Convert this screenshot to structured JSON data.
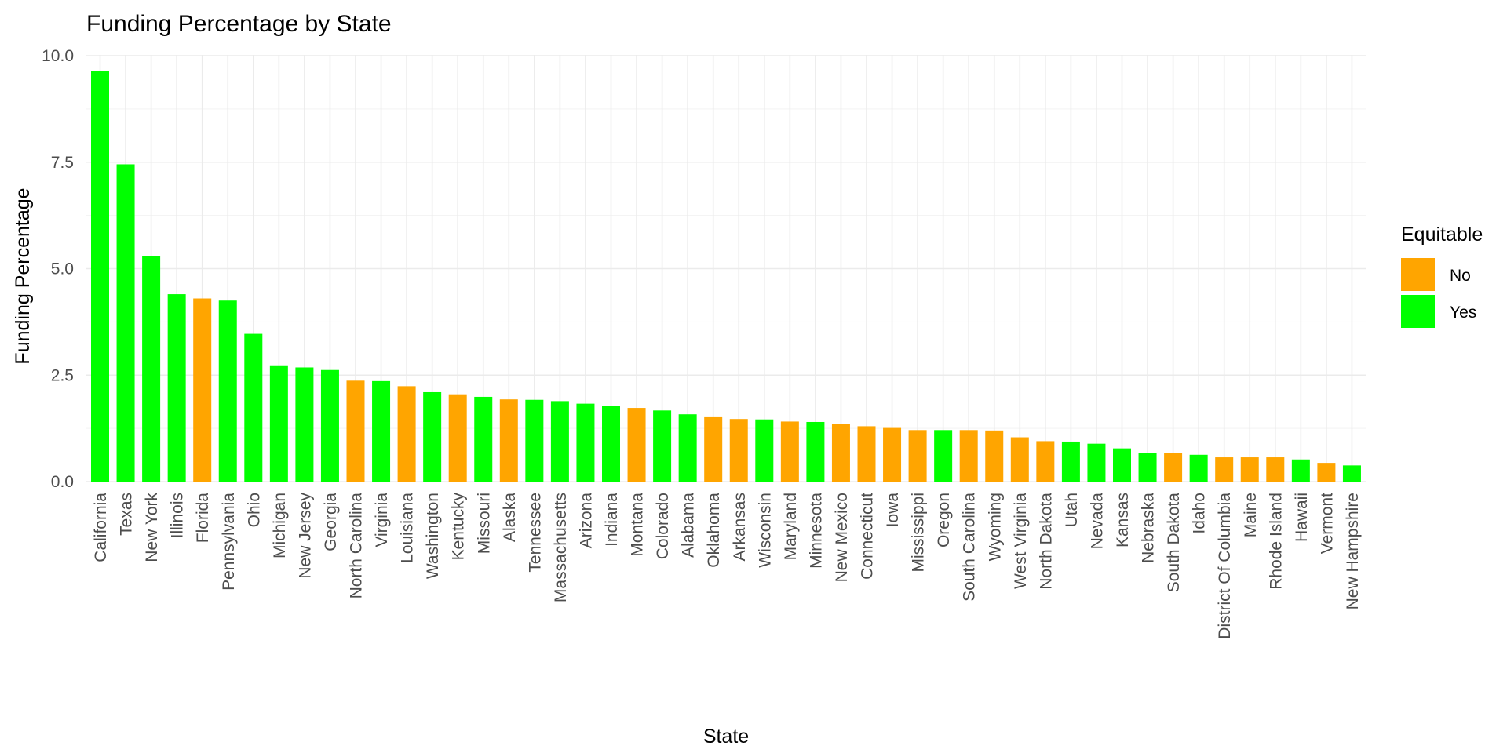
{
  "chart_data": {
    "type": "bar",
    "title": "Funding Percentage by State",
    "xlabel": "State",
    "ylabel": "Funding Percentage",
    "ylim": [
      0,
      10
    ],
    "y_ticks": [
      "0.0",
      "2.5",
      "5.0",
      "7.5",
      "10.0"
    ],
    "grid": true,
    "legend": {
      "title": "Equitable",
      "placement": "right",
      "items": [
        {
          "label": "No",
          "color": "#FFA500"
        },
        {
          "label": "Yes",
          "color": "#00FF00"
        }
      ]
    },
    "categories": [
      "California",
      "Texas",
      "New York",
      "Illinois",
      "Florida",
      "Pennsylvania",
      "Ohio",
      "Michigan",
      "New Jersey",
      "Georgia",
      "North Carolina",
      "Virginia",
      "Louisiana",
      "Washington",
      "Kentucky",
      "Missouri",
      "Alaska",
      "Tennessee",
      "Massachusetts",
      "Arizona",
      "Indiana",
      "Montana",
      "Colorado",
      "Alabama",
      "Oklahoma",
      "Arkansas",
      "Wisconsin",
      "Maryland",
      "Minnesota",
      "New Mexico",
      "Connecticut",
      "Iowa",
      "Mississippi",
      "Oregon",
      "South Carolina",
      "Wyoming",
      "West Virginia",
      "North Dakota",
      "Utah",
      "Nevada",
      "Kansas",
      "Nebraska",
      "South Dakota",
      "Idaho",
      "District Of Columbia",
      "Maine",
      "Rhode Island",
      "Hawaii",
      "Vermont",
      "New Hampshire"
    ],
    "values": [
      9.65,
      7.45,
      5.3,
      4.4,
      4.3,
      4.25,
      3.47,
      2.73,
      2.68,
      2.62,
      2.37,
      2.36,
      2.24,
      2.1,
      2.05,
      1.99,
      1.93,
      1.92,
      1.89,
      1.83,
      1.78,
      1.73,
      1.67,
      1.58,
      1.53,
      1.47,
      1.46,
      1.41,
      1.4,
      1.35,
      1.3,
      1.26,
      1.21,
      1.21,
      1.21,
      1.2,
      1.04,
      0.95,
      0.94,
      0.89,
      0.78,
      0.68,
      0.68,
      0.63,
      0.57,
      0.57,
      0.57,
      0.52,
      0.44,
      0.38
    ],
    "equitable": [
      "Yes",
      "Yes",
      "Yes",
      "Yes",
      "No",
      "Yes",
      "Yes",
      "Yes",
      "Yes",
      "Yes",
      "No",
      "Yes",
      "No",
      "Yes",
      "No",
      "Yes",
      "No",
      "Yes",
      "Yes",
      "Yes",
      "Yes",
      "No",
      "Yes",
      "Yes",
      "No",
      "No",
      "Yes",
      "No",
      "Yes",
      "No",
      "No",
      "No",
      "No",
      "Yes",
      "No",
      "No",
      "No",
      "No",
      "Yes",
      "Yes",
      "Yes",
      "Yes",
      "No",
      "Yes",
      "No",
      "No",
      "No",
      "Yes",
      "No",
      "Yes"
    ]
  }
}
